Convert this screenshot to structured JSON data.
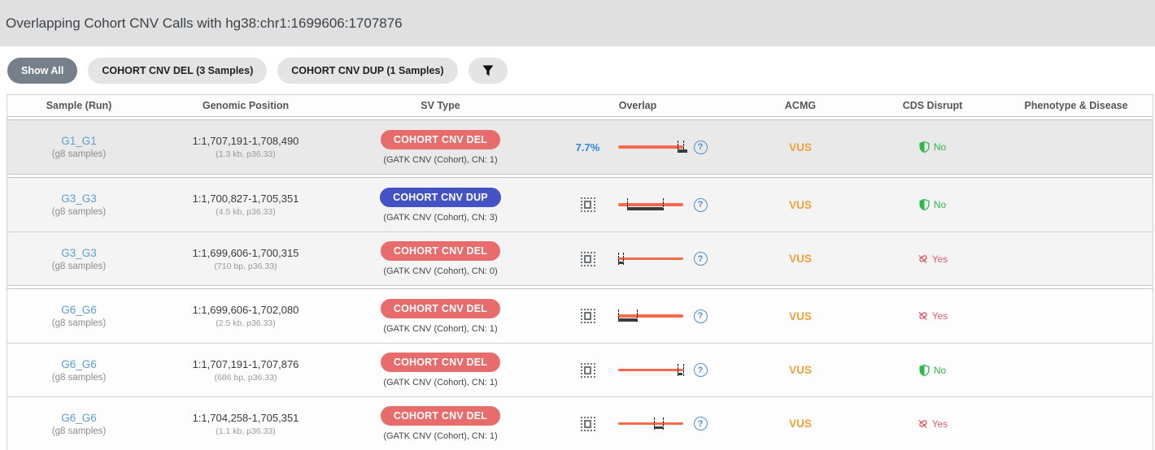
{
  "title": "Overlapping Cohort CNV Calls with hg38:chr1:1699606:1707876",
  "filters": {
    "show_all_label": "Show All",
    "del_chip_label": "COHORT CNV DEL (3 Samples)",
    "dup_chip_label": "COHORT CNV DUP (1 Samples)"
  },
  "colors": {
    "badge_del": "#e96c6c",
    "badge_dup": "#4353c4",
    "overlap_line": "#f5694c",
    "acmg_vus": "#f0a13c",
    "cds_no": "#2db84b",
    "cds_yes": "#e35d6a",
    "percent_blue": "#2e86de"
  },
  "table": {
    "columns": {
      "sample": "Sample (Run)",
      "position": "Genomic Position",
      "sv_type": "SV Type",
      "overlap": "Overlap",
      "acmg": "ACMG",
      "cds": "CDS Disrupt",
      "phenotype": "Phenotype & Disease"
    },
    "rows": [
      {
        "sample": "G1_G1",
        "sample_sub": "(g8 samples)",
        "position": "1:1,707,191-1,708,490",
        "position_sub": "(1.3 kb, p36.33)",
        "sv_badge_label": "COHORT CNV DEL",
        "sv_badge_color": "#e96c6c",
        "sv_caller": "(GATK CNV (Cohort), CN: 1)",
        "overlap": {
          "percent": "7.7%",
          "bar": {
            "start": 91.7,
            "end": 107.4,
            "ticks": [
              91.7,
              100
            ]
          }
        },
        "acmg": "VUS",
        "cds": {
          "value": "No",
          "status": "ok"
        },
        "phenotype": ""
      },
      {
        "sample": "G3_G3",
        "sample_sub": "(g8 samples)",
        "position": "1:1,700,827-1,705,351",
        "position_sub": "(4.5 kb, p36.33)",
        "sv_badge_label": "COHORT CNV DUP",
        "sv_badge_color": "#4353c4",
        "sv_caller": "(GATK CNV (Cohort), CN: 3)",
        "overlap": {
          "percent": null,
          "bar": {
            "start": 14.8,
            "end": 69.5,
            "ticks": [
              14.8,
              69.5
            ]
          }
        },
        "acmg": "VUS",
        "cds": {
          "value": "No",
          "status": "ok"
        },
        "phenotype": ""
      },
      {
        "sample": "G3_G3",
        "sample_sub": "(g8 samples)",
        "position": "1:1,699,606-1,700,315",
        "position_sub": "(710 bp, p36.33)",
        "sv_badge_label": "COHORT CNV DEL",
        "sv_badge_color": "#e96c6c",
        "sv_caller": "(GATK CNV (Cohort), CN: 0)",
        "overlap": {
          "percent": null,
          "bar": {
            "start": 0,
            "end": 8.6,
            "ticks": [
              0,
              8.6
            ]
          }
        },
        "acmg": "VUS",
        "cds": {
          "value": "Yes",
          "status": "bad"
        },
        "phenotype": ""
      },
      {
        "sample": "G6_G6",
        "sample_sub": "(g8 samples)",
        "position": "1:1,699,606-1,702,080",
        "position_sub": "(2.5 kb, p36.33)",
        "sv_badge_label": "COHORT CNV DEL",
        "sv_badge_color": "#e96c6c",
        "sv_caller": "(GATK CNV (Cohort), CN: 1)",
        "overlap": {
          "percent": null,
          "bar": {
            "start": 0,
            "end": 29.9,
            "ticks": [
              0,
              29.9
            ]
          }
        },
        "acmg": "VUS",
        "cds": {
          "value": "Yes",
          "status": "bad"
        },
        "phenotype": ""
      },
      {
        "sample": "G6_G6",
        "sample_sub": "(g8 samples)",
        "position": "1:1,707,191-1,707,876",
        "position_sub": "(686 bp, p36.33)",
        "sv_badge_label": "COHORT CNV DEL",
        "sv_badge_color": "#e96c6c",
        "sv_caller": "(GATK CNV (Cohort), CN: 1)",
        "overlap": {
          "percent": null,
          "bar": {
            "start": 91.7,
            "end": 100,
            "ticks": [
              91.7,
              100
            ]
          }
        },
        "acmg": "VUS",
        "cds": {
          "value": "No",
          "status": "ok"
        },
        "phenotype": ""
      },
      {
        "sample": "G6_G6",
        "sample_sub": "(g8 samples)",
        "position": "1:1,704,258-1,705,351",
        "position_sub": "(1.1 kb, p36.33)",
        "sv_badge_label": "COHORT CNV DEL",
        "sv_badge_color": "#e96c6c",
        "sv_caller": "(GATK CNV (Cohort), CN: 1)",
        "overlap": {
          "percent": null,
          "bar": {
            "start": 56.2,
            "end": 69.5,
            "ticks": [
              56.2,
              69.5
            ]
          }
        },
        "acmg": "VUS",
        "cds": {
          "value": "Yes",
          "status": "bad"
        },
        "phenotype": ""
      }
    ]
  }
}
